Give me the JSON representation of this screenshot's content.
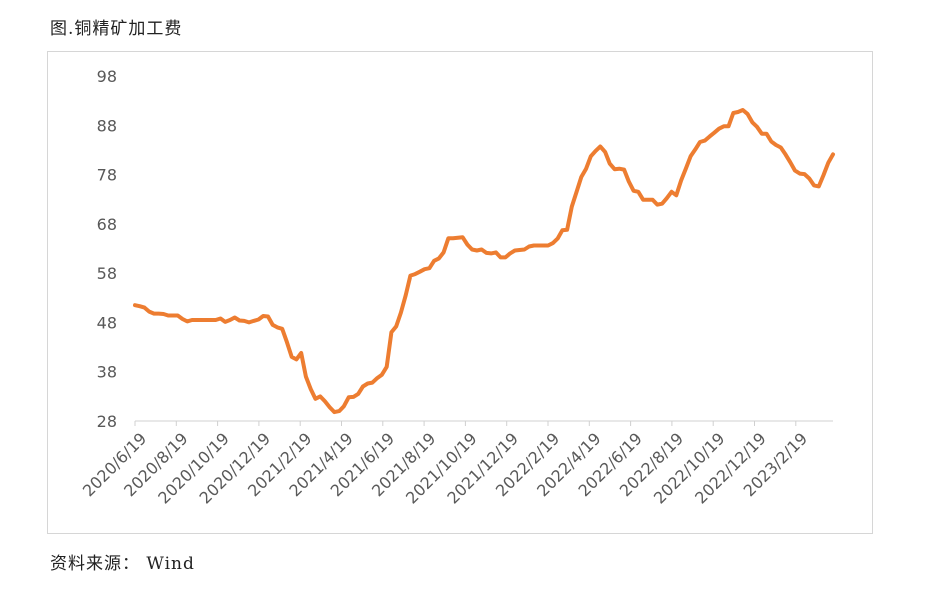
{
  "page": {
    "title": "图.铜精矿加工费",
    "source": "资料来源： Wind"
  },
  "chart_data": {
    "type": "line",
    "title": "",
    "xlabel": "",
    "ylabel": "",
    "ylim": [
      28,
      98
    ],
    "yticks": [
      28,
      38,
      48,
      58,
      68,
      78,
      88,
      98
    ],
    "xtick_labels": [
      "2020/6/19",
      "2020/8/19",
      "2020/10/19",
      "2020/12/19",
      "2021/2/19",
      "2021/4/19",
      "2021/6/19",
      "2021/8/19",
      "2021/10/19",
      "2021/12/19",
      "2022/2/19",
      "2022/4/19",
      "2022/6/19",
      "2022/8/19",
      "2022/10/19",
      "2022/12/19",
      "2023/2/19"
    ],
    "grid": false,
    "legend": "none",
    "line_color": "#ED7D31",
    "series": [
      {
        "values": [
          51.5,
          51.3,
          51,
          50.2,
          49.8,
          49.8,
          49.7,
          49.4,
          49.4,
          49.4,
          48.7,
          48.2,
          48.5,
          48.5,
          48.5,
          48.5,
          48.5,
          48.5,
          48.8,
          48.1,
          48.5,
          49,
          48.4,
          48.3,
          48,
          48.3,
          48.6,
          49.3,
          49.2,
          47.5,
          47,
          46.7,
          44,
          41,
          40.5,
          41.8,
          37,
          34.5,
          32.5,
          33,
          32,
          30.8,
          29.8,
          30,
          31,
          32.8,
          32.9,
          33.5,
          35,
          35.6,
          35.8,
          36.7,
          37.4,
          39,
          46,
          47.2,
          50,
          53.5,
          57.5,
          57.8,
          58.3,
          58.8,
          59,
          60.5,
          61,
          62.2,
          65.1,
          65.1,
          65.2,
          65.3,
          63.8,
          62.8,
          62.6,
          62.8,
          62.1,
          62,
          62.2,
          61.2,
          61.2,
          62,
          62.6,
          62.7,
          62.8,
          63.4,
          63.6,
          63.6,
          63.6,
          63.6,
          64.1,
          65,
          66.7,
          66.8,
          71.5,
          74.5,
          77.5,
          79.2,
          81.7,
          82.8,
          83.7,
          82.6,
          80.2,
          79.1,
          79.2,
          79,
          76.6,
          74.7,
          74.5,
          72.9,
          72.9,
          72.9,
          71.9,
          72.1,
          73.2,
          74.5,
          73.8,
          76.8,
          79.2,
          81.7,
          83.1,
          84.6,
          84.9,
          85.7,
          86.5,
          87.3,
          87.8,
          87.8,
          90.5,
          90.7,
          91.1,
          90.3,
          88.6,
          87.7,
          86.3,
          86.3,
          84.7,
          84,
          83.5,
          82.1,
          80.5,
          78.8,
          78.2,
          78.1,
          77.2,
          75.8,
          75.6,
          77.9,
          80.4,
          82.1
        ]
      }
    ]
  }
}
